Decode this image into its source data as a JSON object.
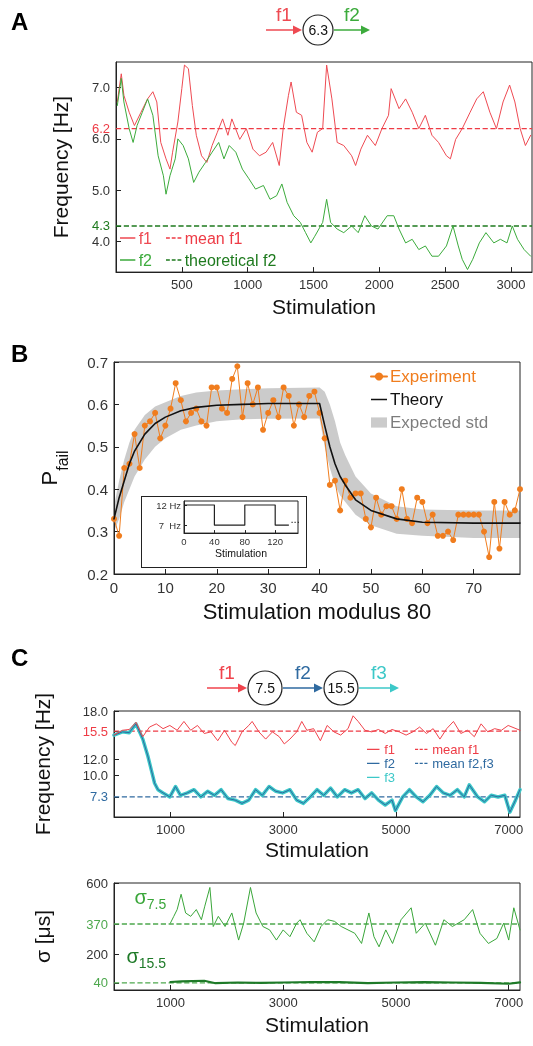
{
  "chart_data": [
    {
      "type": "line",
      "title": "A",
      "xlabel": "Stimulation",
      "ylabel": "Frequency [Hz]",
      "annotations": [
        "f1",
        "6.3",
        "f2"
      ],
      "xlim": [
        0,
        3160
      ],
      "xticks": [
        500,
        1000,
        1500,
        2000,
        2500,
        3000
      ],
      "ylim": [
        3.4,
        7.5
      ],
      "yticks": [
        {
          "value": 4,
          "label": "4.0"
        },
        4.3,
        {
          "value": 5,
          "label": "5.0"
        },
        {
          "value": 6,
          "label": "6.0"
        },
        6.2,
        {
          "value": 7,
          "label": "7.0"
        }
      ],
      "legend": "bottom left",
      "ref_lines": [
        {
          "axis": "y",
          "value": 6.2,
          "label": "mean f1",
          "color": "#ee3b45",
          "line_style": "dashed"
        },
        {
          "axis": "y",
          "value": 4.3,
          "label": "theoretical f2",
          "color": "#1e7a1e",
          "line_style": "dashed"
        }
      ],
      "series": [
        {
          "name": "f1",
          "color": "#ee4a52",
          "x": [
            10,
            40,
            60,
            100,
            140,
            190,
            240,
            280,
            310,
            340,
            380,
            410,
            430,
            470,
            500,
            520,
            550,
            580,
            610,
            650,
            690,
            730,
            770,
            810,
            850,
            880,
            940,
            990,
            1040,
            1090,
            1140,
            1190,
            1240,
            1270,
            1310,
            1330,
            1370,
            1410,
            1450,
            1490,
            1530,
            1570,
            1600,
            1640,
            1680,
            1730,
            1790,
            1820,
            1860,
            1910,
            1970,
            2020,
            2070,
            2090,
            2150,
            2200,
            2250,
            2300,
            2350,
            2400,
            2450,
            2510,
            2540,
            2580,
            2630,
            2690,
            2740,
            2790,
            2840,
            2890,
            2940,
            2990,
            3030,
            3070,
            3110,
            3150
          ],
          "values": [
            6.72,
            7.27,
            6.85,
            6.52,
            6.26,
            6.52,
            6.78,
            6.92,
            6.72,
            5.93,
            5.61,
            5.41,
            5.74,
            6.33,
            6.98,
            7.44,
            7.37,
            6.65,
            6.07,
            5.67,
            5.54,
            5.87,
            6.13,
            6.39,
            6.07,
            6.39,
            5.99,
            6.2,
            5.8,
            5.67,
            5.74,
            5.93,
            5.48,
            6.2,
            6.85,
            7.11,
            6.52,
            6.46,
            5.93,
            5.74,
            6.13,
            6.2,
            7.44,
            6.78,
            5.93,
            5.87,
            5.67,
            5.48,
            5.8,
            6.07,
            5.87,
            6.2,
            6.46,
            6.98,
            6.59,
            6.78,
            6.52,
            6.2,
            6.46,
            6.07,
            5.93,
            5.67,
            5.61,
            5.99,
            6.2,
            6.52,
            6.78,
            6.92,
            6.52,
            6.2,
            6.72,
            7.05,
            6.72,
            6.2,
            5.87,
            6.07
          ]
        },
        {
          "name": "f2",
          "color": "#3cab3c",
          "x": [
            10,
            40,
            60,
            100,
            130,
            160,
            200,
            240,
            280,
            320,
            360,
            380,
            410,
            450,
            470,
            510,
            550,
            590,
            630,
            680,
            730,
            780,
            820,
            860,
            910,
            960,
            1010,
            1060,
            1120,
            1170,
            1220,
            1260,
            1300,
            1350,
            1400,
            1440,
            1480,
            1510,
            1570,
            1600,
            1630,
            1680,
            1730,
            1790,
            1840,
            1890,
            1940,
            1990,
            2060,
            2110,
            2150,
            2200,
            2250,
            2300,
            2350,
            2400,
            2450,
            2510,
            2560,
            2600,
            2630,
            2670,
            2710,
            2760,
            2810,
            2870,
            2920,
            2970,
            3010,
            3050,
            3100,
            3150
          ],
          "values": [
            6.65,
            7.18,
            6.72,
            6.2,
            5.93,
            6.26,
            6.52,
            6.78,
            6.46,
            5.67,
            5.28,
            4.92,
            5.28,
            5.61,
            6.0,
            5.87,
            5.61,
            5.15,
            5.35,
            5.54,
            5.74,
            5.93,
            5.61,
            5.87,
            5.74,
            5.41,
            5.22,
            5.02,
            5.09,
            4.82,
            4.89,
            5.12,
            4.76,
            4.5,
            4.37,
            4.17,
            3.97,
            4.1,
            4.37,
            4.82,
            4.37,
            4.24,
            4.17,
            4.3,
            4.17,
            4.5,
            4.3,
            4.24,
            4.5,
            4.5,
            4.24,
            3.97,
            4.04,
            3.84,
            3.91,
            3.71,
            3.71,
            3.91,
            4.3,
            3.91,
            3.65,
            3.45,
            3.65,
            3.97,
            4.17,
            3.97,
            4.04,
            3.97,
            4.3,
            4.04,
            3.84,
            3.71
          ]
        }
      ]
    },
    {
      "type": "line",
      "title": "B",
      "xlabel": "Stimulation modulus 80",
      "ylabel": "P$_{fail}$",
      "xlim": [
        0,
        79
      ],
      "xticks": [
        0,
        10,
        20,
        30,
        40,
        50,
        60,
        70
      ],
      "ylim": [
        0.2,
        0.7
      ],
      "yticks": [
        0.2,
        0.3,
        0.4,
        0.5,
        0.6,
        0.7
      ],
      "legend": "top right",
      "annotations": [
        "Expected std"
      ],
      "series": [
        {
          "name": "Experiment",
          "color": "#f07d1e",
          "marker": "circle",
          "x": [
            0,
            1,
            2,
            3,
            4,
            5,
            6,
            7,
            8,
            9,
            10,
            11,
            12,
            13,
            14,
            15,
            16,
            17,
            18,
            19,
            20,
            21,
            22,
            23,
            24,
            25,
            26,
            27,
            28,
            29,
            30,
            31,
            32,
            33,
            34,
            35,
            36,
            37,
            38,
            39,
            40,
            41,
            42,
            43,
            44,
            45,
            46,
            47,
            48,
            49,
            50,
            51,
            52,
            53,
            54,
            55,
            56,
            57,
            58,
            59,
            60,
            61,
            62,
            63,
            64,
            65,
            66,
            67,
            68,
            69,
            70,
            71,
            72,
            73,
            74,
            75,
            76,
            77,
            78,
            79
          ],
          "values": [
            0.33,
            0.29,
            0.45,
            0.46,
            0.53,
            0.45,
            0.55,
            0.56,
            0.58,
            0.52,
            0.55,
            0.59,
            0.65,
            0.61,
            0.56,
            0.58,
            0.59,
            0.56,
            0.55,
            0.64,
            0.64,
            0.59,
            0.58,
            0.66,
            0.69,
            0.57,
            0.65,
            0.6,
            0.64,
            0.54,
            0.58,
            0.61,
            0.57,
            0.64,
            0.62,
            0.55,
            0.6,
            0.57,
            0.62,
            0.63,
            0.58,
            0.52,
            0.41,
            0.42,
            0.35,
            0.42,
            0.38,
            0.39,
            0.39,
            0.33,
            0.31,
            0.38,
            0.34,
            0.36,
            0.36,
            0.33,
            0.4,
            0.33,
            0.32,
            0.38,
            0.37,
            0.32,
            0.34,
            0.29,
            0.29,
            0.3,
            0.28,
            0.34,
            0.34,
            0.34,
            0.34,
            0.34,
            0.3,
            0.24,
            0.37,
            0.26,
            0.37,
            0.34,
            0.35,
            0.4
          ]
        },
        {
          "name": "Theory",
          "color": "#111111",
          "x": [
            0,
            1,
            2,
            3,
            4,
            6,
            8,
            10,
            13,
            16,
            20,
            25,
            30,
            40,
            41,
            42,
            43,
            44,
            45,
            47,
            50,
            55,
            60,
            70,
            79
          ],
          "values": [
            0.33,
            0.38,
            0.42,
            0.46,
            0.49,
            0.53,
            0.555,
            0.57,
            0.585,
            0.593,
            0.598,
            0.6,
            0.602,
            0.602,
            0.55,
            0.5,
            0.46,
            0.43,
            0.41,
            0.375,
            0.35,
            0.33,
            0.322,
            0.32,
            0.32
          ],
          "lower": [
            0.3,
            0.33,
            0.37,
            0.4,
            0.43,
            0.47,
            0.5,
            0.52,
            0.54,
            0.55,
            0.56,
            0.565,
            0.566,
            0.567,
            0.5,
            0.45,
            0.41,
            0.385,
            0.37,
            0.34,
            0.315,
            0.295,
            0.29,
            0.285,
            0.285
          ],
          "upper": [
            0.36,
            0.42,
            0.47,
            0.51,
            0.54,
            0.575,
            0.595,
            0.605,
            0.62,
            0.628,
            0.633,
            0.636,
            0.638,
            0.64,
            0.63,
            0.6,
            0.56,
            0.51,
            0.48,
            0.43,
            0.39,
            0.36,
            0.352,
            0.35,
            0.35
          ]
        }
      ]
    },
    {
      "type": "step",
      "xlabel": "Stimulation",
      "x": [
        0,
        40,
        80,
        120,
        138
      ],
      "values": [
        12,
        7,
        12,
        7,
        7
      ],
      "color": "#222222",
      "xlim": [
        0,
        150
      ],
      "xticks": [
        0,
        40,
        80,
        120
      ],
      "ylim": [
        5,
        13
      ],
      "yticks": [
        {
          "value": 12,
          "label": "12 Hz"
        },
        {
          "value": 7,
          "label": "7  Hz"
        }
      ],
      "annotations": [
        {
          "text": "...",
          "x": 140,
          "y": 7
        }
      ]
    },
    {
      "type": "line",
      "title": "C",
      "xlabel": "Stimulation",
      "ylabel": "Frequency [Hz]",
      "annotations": [
        "f1",
        "7.5",
        "f2",
        "15.5",
        "f3"
      ],
      "xlim": [
        0,
        7200
      ],
      "xticks": [
        1000,
        3000,
        5000,
        7000
      ],
      "ylim": [
        4.8,
        18
      ],
      "yticks": [
        7.3,
        {
          "value": 10,
          "label": "10.0"
        },
        {
          "value": 12,
          "label": "12.0"
        },
        15.5,
        {
          "value": 18,
          "label": "18.0"
        }
      ],
      "legend": "right",
      "ref_lines": [
        {
          "axis": "y",
          "value": 15.5,
          "label": "mean f1",
          "color": "#ee3b45",
          "line_style": "dashed"
        },
        {
          "axis": "y",
          "value": 7.3,
          "label": "mean f2,f3",
          "color": "#2f6aa0",
          "line_style": "dashed"
        }
      ],
      "series": [
        {
          "name": "f1",
          "color": "#f0434c",
          "x": [
            0,
            150,
            270,
            390,
            510,
            630,
            750,
            870,
            990,
            1120,
            1240,
            1360,
            1480,
            1600,
            1720,
            1840,
            1960,
            2090,
            2150,
            2270,
            2390,
            2450,
            2570,
            2690,
            2810,
            2930,
            3020,
            3120,
            3240,
            3330,
            3420,
            3540,
            3660,
            3780,
            3900,
            4020,
            4150,
            4240,
            4330,
            4450,
            4570,
            4690,
            4810,
            4930,
            5060,
            5180,
            5300,
            5420,
            5540,
            5660,
            5780,
            5900,
            6020,
            6150,
            6270,
            6390,
            6510,
            6630,
            6750,
            6870,
            6990,
            7200
          ],
          "values": [
            15.0,
            15.6,
            15.7,
            16.6,
            14.8,
            16.0,
            16.4,
            15.8,
            16.2,
            15.6,
            16.7,
            15.6,
            16.2,
            15.2,
            15.4,
            14.3,
            15.6,
            14.1,
            13.7,
            15.4,
            16.2,
            16.7,
            15.4,
            14.5,
            15.4,
            14.8,
            13.9,
            14.5,
            15.4,
            16.7,
            15.6,
            15.8,
            14.3,
            16.2,
            15.4,
            15.0,
            15.8,
            17.4,
            16.7,
            15.6,
            15.4,
            15.7,
            15.2,
            15.7,
            15.4,
            15.0,
            15.4,
            16.0,
            15.2,
            15.8,
            14.5,
            15.8,
            16.7,
            15.2,
            15.6,
            14.8,
            16.4,
            15.4,
            15.8,
            15.6,
            16.2,
            15.6
          ]
        },
        {
          "name": "f2",
          "color": "#2f6aa0",
          "x": [
            0,
            150,
            270,
            390,
            510,
            600,
            660,
            720,
            780,
            870,
            990,
            1090,
            1180,
            1300,
            1420,
            1540,
            1660,
            1780,
            1900,
            2020,
            2150,
            2270,
            2390,
            2510,
            2630,
            2750,
            2870,
            2990,
            3120,
            3240,
            3360,
            3480,
            3600,
            3720,
            3840,
            3960,
            4090,
            4210,
            4330,
            4450,
            4570,
            4690,
            4810,
            4930,
            4990,
            5120,
            5240,
            5360,
            5480,
            5600,
            5720,
            5840,
            5960,
            6090,
            6210,
            6300,
            6450,
            6570,
            6690,
            6810,
            6930,
            7020,
            7120,
            7200
          ],
          "values": [
            15.0,
            15.4,
            15.3,
            16.4,
            14.5,
            12.4,
            10.7,
            9.0,
            8.2,
            7.8,
            7.3,
            8.6,
            7.5,
            7.8,
            8.2,
            7.3,
            8.0,
            7.5,
            8.2,
            7.1,
            6.9,
            6.5,
            6.9,
            8.2,
            7.5,
            8.6,
            8.0,
            7.8,
            8.2,
            6.9,
            6.5,
            7.3,
            8.2,
            7.5,
            8.4,
            7.3,
            8.2,
            7.8,
            8.2,
            7.1,
            7.8,
            6.9,
            6.3,
            6.9,
            5.6,
            7.3,
            8.2,
            7.3,
            6.7,
            7.5,
            8.6,
            7.8,
            7.5,
            8.2,
            7.3,
            8.8,
            7.3,
            6.7,
            7.5,
            7.3,
            7.5,
            5.4,
            6.9,
            8.2
          ]
        },
        {
          "name": "f3",
          "color": "#3cc8c8",
          "x": [
            0,
            150,
            270,
            390,
            510,
            600,
            660,
            720,
            780,
            870,
            990,
            1090,
            1180,
            1300,
            1420,
            1540,
            1660,
            1780,
            1900,
            2020,
            2150,
            2270,
            2390,
            2510,
            2630,
            2750,
            2870,
            2990,
            3120,
            3240,
            3360,
            3480,
            3600,
            3720,
            3840,
            3960,
            4090,
            4210,
            4330,
            4450,
            4570,
            4690,
            4810,
            4930,
            4990,
            5120,
            5240,
            5360,
            5480,
            5600,
            5720,
            5840,
            5960,
            6090,
            6210,
            6300,
            6450,
            6570,
            6690,
            6810,
            6930,
            7020,
            7120,
            7200
          ],
          "values": [
            15.0,
            15.4,
            15.3,
            16.4,
            14.5,
            12.4,
            10.7,
            9.0,
            8.2,
            7.8,
            7.3,
            8.6,
            7.5,
            7.8,
            8.2,
            7.3,
            8.0,
            7.5,
            8.2,
            7.1,
            6.9,
            6.5,
            6.9,
            8.2,
            7.5,
            8.6,
            8.0,
            7.8,
            8.2,
            6.9,
            6.5,
            7.3,
            8.2,
            7.5,
            8.4,
            7.3,
            8.2,
            7.8,
            8.2,
            7.1,
            7.8,
            6.9,
            6.3,
            6.9,
            5.6,
            7.3,
            8.2,
            7.3,
            6.7,
            7.5,
            8.6,
            7.8,
            7.5,
            8.2,
            7.3,
            8.8,
            7.3,
            6.7,
            7.5,
            7.3,
            7.5,
            5.4,
            6.9,
            8.2
          ]
        }
      ]
    },
    {
      "type": "line",
      "xlabel": "Stimulation",
      "ylabel": "σ [μs]",
      "xlim": [
        0,
        7200
      ],
      "xticks": [
        1000,
        3000,
        5000,
        7000
      ],
      "ylim": [
        0,
        600
      ],
      "yticks": [
        40,
        200,
        370,
        600
      ],
      "ref_lines": [
        {
          "axis": "y",
          "value": 370,
          "color": "#4ea84e",
          "line_style": "dashed"
        },
        {
          "axis": "y",
          "value": 40,
          "color": "#4ea84e",
          "line_style": "dashed"
        }
      ],
      "series": [
        {
          "name": "σ$_{7.5}$",
          "color": "#3aa63a",
          "x": [
            1000,
            1060,
            1120,
            1190,
            1270,
            1360,
            1460,
            1550,
            1610,
            1700,
            1760,
            1850,
            1970,
            2090,
            2210,
            2300,
            2420,
            2520,
            2640,
            2760,
            2880,
            3000,
            3120,
            3240,
            3300,
            3420,
            3550,
            3670,
            3790,
            3910,
            4030,
            4150,
            4270,
            4390,
            4520,
            4610,
            4700,
            4820,
            4940,
            5090,
            5270,
            5360,
            5520,
            5700,
            5850,
            6000,
            6210,
            6360,
            6490,
            6640,
            6790,
            6910,
            7000,
            7090,
            7200
          ],
          "values": [
            375,
            413,
            451,
            537,
            432,
            413,
            451,
            394,
            470,
            575,
            356,
            413,
            356,
            432,
            280,
            375,
            575,
            432,
            356,
            337,
            280,
            337,
            299,
            375,
            394,
            318,
            270,
            356,
            394,
            385,
            356,
            337,
            318,
            261,
            432,
            299,
            242,
            337,
            261,
            394,
            461,
            318,
            375,
            251,
            394,
            356,
            394,
            451,
            318,
            261,
            289,
            375,
            280,
            461,
            337
          ]
        },
        {
          "name": "σ$_{15.5}$",
          "color": "#1e7a28",
          "x": [
            1000,
            1200,
            1600,
            1800,
            2200,
            2600,
            3000,
            3500,
            4000,
            4500,
            5000,
            5500,
            6000,
            6500,
            7000,
            7200
          ],
          "values": [
            45,
            48,
            52,
            38,
            42,
            40,
            42,
            45,
            44,
            38,
            42,
            44,
            42,
            40,
            35,
            43
          ]
        }
      ]
    }
  ]
}
